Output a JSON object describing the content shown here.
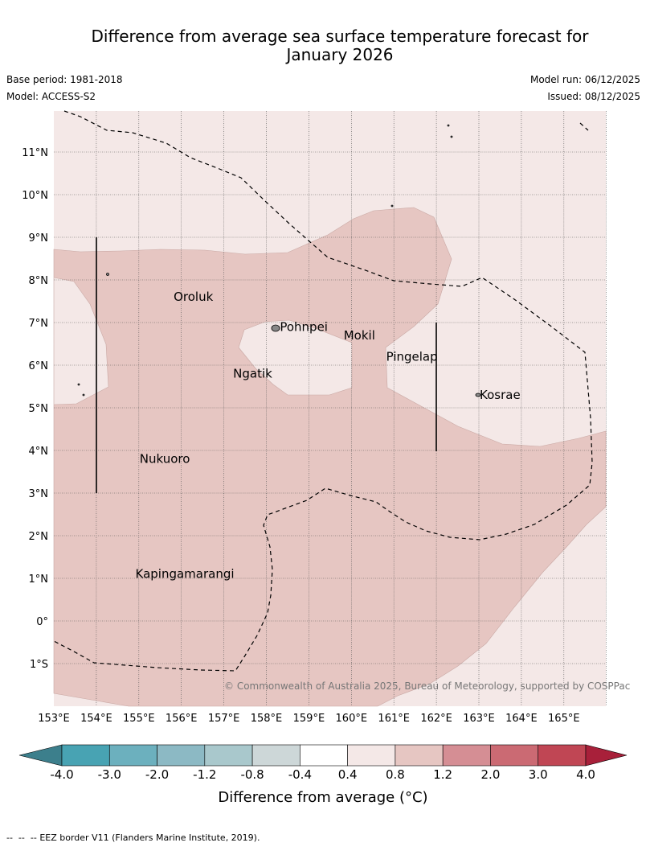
{
  "header": {
    "title_line1": "Difference from average sea surface temperature forecast for",
    "title_line2": "January 2026",
    "base_period": "Base period: 1981-2018",
    "model": "Model: ACCESS-S2",
    "model_run": "Model run: 06/12/2025",
    "issued": "Issued: 08/12/2025"
  },
  "map": {
    "lat_labels": [
      "11°N",
      "10°N",
      "9°N",
      "8°N",
      "7°N",
      "6°N",
      "5°N",
      "4°N",
      "3°N",
      "2°N",
      "1°N",
      "0°",
      "1°S"
    ],
    "lon_labels": [
      "153°E",
      "154°E",
      "155°E",
      "156°E",
      "157°E",
      "158°E",
      "159°E",
      "160°E",
      "161°E",
      "162°E",
      "163°E",
      "164°E",
      "165°E"
    ],
    "places": [
      {
        "name": "Oroluk",
        "lon": 155.8,
        "lat": 7.6
      },
      {
        "name": "Pohnpei",
        "lon": 158.3,
        "lat": 6.9
      },
      {
        "name": "Mokil",
        "lon": 159.8,
        "lat": 6.7
      },
      {
        "name": "Pingelap",
        "lon": 160.8,
        "lat": 6.2
      },
      {
        "name": "Ngatik",
        "lon": 157.2,
        "lat": 5.8
      },
      {
        "name": "Kosrae",
        "lon": 163.0,
        "lat": 5.3
      },
      {
        "name": "Nukuoro",
        "lon": 155.0,
        "lat": 3.8
      },
      {
        "name": "Kapingamarangi",
        "lon": 154.9,
        "lat": 1.1
      }
    ],
    "copyright": "© Commonwealth of Australia 2025, Bureau of Meteorology, supported by COSPPac",
    "colors": {
      "band_0_4_0_8": "#f4e8e7",
      "band_0_8_1_2": "#e6c6c2"
    }
  },
  "colorbar": {
    "ticks": [
      "-4.0",
      "-3.0",
      "-2.0",
      "-1.2",
      "-0.8",
      "-0.4",
      "0.4",
      "0.8",
      "1.2",
      "2.0",
      "3.0",
      "4.0"
    ],
    "colors": [
      "#3c7f8c",
      "#48a3b3",
      "#6cb0be",
      "#8cb9c4",
      "#a9c8cc",
      "#cdd7d8",
      "#ffffff",
      "#f4e8e7",
      "#e6c6c2",
      "#d58e94",
      "#cb6a73",
      "#c04654",
      "#a8203a"
    ],
    "label": "Difference from average (°C)"
  },
  "footer": {
    "eez_note": "EEZ border V11 (Flanders Marine Institute, 2019)."
  }
}
